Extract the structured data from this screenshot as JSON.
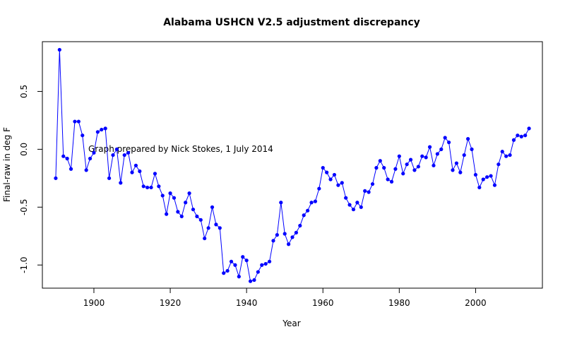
{
  "chart_data": {
    "type": "line",
    "title": "Alabama USHCN V2.5 adjustment discrepancy",
    "xlabel": "Year",
    "ylabel": "Final-raw in deg F",
    "annotation": "Graph prepared by Nick Stokes, 1 July 2014",
    "xlim": [
      1886.5,
      2017.5
    ],
    "ylim": [
      -1.2,
      0.93
    ],
    "x_ticks": [
      1900,
      1920,
      1940,
      1960,
      1980,
      2000
    ],
    "y_ticks": [
      -1.0,
      -0.5,
      0.0,
      0.5
    ],
    "y_tick_labels": [
      "-1.0",
      "-0.5",
      "0.0",
      "0.5"
    ],
    "grid": false,
    "series_color": "#0000ff",
    "x": [
      1890,
      1891,
      1892,
      1893,
      1894,
      1895,
      1896,
      1897,
      1898,
      1899,
      1900,
      1901,
      1902,
      1903,
      1904,
      1905,
      1906,
      1907,
      1908,
      1909,
      1910,
      1911,
      1912,
      1913,
      1914,
      1915,
      1916,
      1917,
      1918,
      1919,
      1920,
      1921,
      1922,
      1923,
      1924,
      1925,
      1926,
      1927,
      1928,
      1929,
      1930,
      1931,
      1932,
      1933,
      1934,
      1935,
      1936,
      1937,
      1938,
      1939,
      1940,
      1941,
      1942,
      1943,
      1944,
      1945,
      1946,
      1947,
      1948,
      1949,
      1950,
      1951,
      1952,
      1953,
      1954,
      1955,
      1956,
      1957,
      1958,
      1959,
      1960,
      1961,
      1962,
      1963,
      1964,
      1965,
      1966,
      1967,
      1968,
      1969,
      1970,
      1971,
      1972,
      1973,
      1974,
      1975,
      1976,
      1977,
      1978,
      1979,
      1980,
      1981,
      1982,
      1983,
      1984,
      1985,
      1986,
      1987,
      1988,
      1989,
      1990,
      1991,
      1992,
      1993,
      1994,
      1995,
      1996,
      1997,
      1998,
      1999,
      2000,
      2001,
      2002,
      2003,
      2004,
      2005,
      2006,
      2007,
      2008,
      2009,
      2010,
      2011,
      2012,
      2013,
      2014
    ],
    "y": [
      -0.25,
      0.86,
      -0.06,
      -0.08,
      -0.17,
      0.24,
      0.24,
      0.12,
      -0.18,
      -0.08,
      -0.03,
      0.15,
      0.17,
      0.18,
      -0.25,
      -0.05,
      0.0,
      -0.29,
      -0.05,
      -0.03,
      -0.2,
      -0.14,
      -0.19,
      -0.32,
      -0.33,
      -0.33,
      -0.21,
      -0.32,
      -0.4,
      -0.56,
      -0.38,
      -0.42,
      -0.54,
      -0.58,
      -0.46,
      -0.38,
      -0.52,
      -0.58,
      -0.61,
      -0.77,
      -0.68,
      -0.5,
      -0.65,
      -0.68,
      -1.07,
      -1.05,
      -0.97,
      -1.0,
      -1.1,
      -0.93,
      -0.96,
      -1.14,
      -1.13,
      -1.06,
      -1.0,
      -0.99,
      -0.97,
      -0.79,
      -0.74,
      -0.46,
      -0.73,
      -0.82,
      -0.76,
      -0.72,
      -0.66,
      -0.57,
      -0.53,
      -0.46,
      -0.45,
      -0.34,
      -0.16,
      -0.2,
      -0.26,
      -0.22,
      -0.31,
      -0.29,
      -0.42,
      -0.48,
      -0.52,
      -0.46,
      -0.5,
      -0.36,
      -0.37,
      -0.3,
      -0.16,
      -0.1,
      -0.16,
      -0.26,
      -0.28,
      -0.17,
      -0.06,
      -0.21,
      -0.13,
      -0.09,
      -0.18,
      -0.15,
      -0.06,
      -0.07,
      0.02,
      -0.14,
      -0.04,
      0.0,
      0.1,
      0.06,
      -0.18,
      -0.12,
      -0.2,
      -0.05,
      0.09,
      0.0,
      -0.22,
      -0.33,
      -0.26,
      -0.24,
      -0.23,
      -0.31,
      -0.13,
      -0.02,
      -0.06,
      -0.05,
      0.08,
      0.12,
      0.11,
      0.12,
      0.18
    ]
  }
}
